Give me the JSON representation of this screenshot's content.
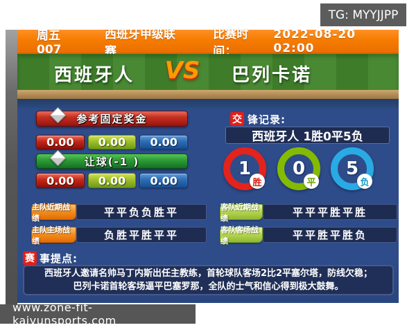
{
  "badges": {
    "tg": "TG: MYYJJPP",
    "watermark": "www.zone-fit-kaiyunsports.com"
  },
  "header": {
    "match_code": "周五007",
    "league": "西班牙甲级联赛",
    "time_label": "比赛时间：",
    "time_value": "2022-08-20 02:00"
  },
  "teams": {
    "home": "西班牙人",
    "vs": "VS",
    "away": "巴列卡诺"
  },
  "odds": {
    "fixed_title": "参考固定奖金",
    "fixed": [
      "0.00",
      "0.00",
      "0.00"
    ],
    "handicap_title": "让球(-1 )",
    "handicap": [
      "0.00",
      "0.00",
      "0.00"
    ]
  },
  "h2h": {
    "title_prefix": "交",
    "title_rest": "锋记录:",
    "summary": "西班牙人 1胜0平5负",
    "rings": [
      {
        "value": "1",
        "label": "胜",
        "color": "#e3231c"
      },
      {
        "value": "0",
        "label": "平",
        "color": "#84ba00"
      },
      {
        "value": "5",
        "label": "负",
        "color": "#2aaae4"
      }
    ]
  },
  "records": {
    "home": [
      {
        "label": "主队近期战绩",
        "value": "平平负负胜平"
      },
      {
        "label": "主队主场战绩",
        "value": "负胜平胜平平"
      }
    ],
    "away": [
      {
        "label": "客队近期战绩",
        "value": "平平平胜平胜"
      },
      {
        "label": "客队客场战绩",
        "value": "平平胜平胜负"
      }
    ]
  },
  "tips": {
    "title_prefix": "赛",
    "title_rest": "事提点:",
    "line1": "西班牙人邀请名帅马丁内斯出任主教练，首轮球队客场2比2平塞尔塔，防线欠稳；",
    "line2": "巴列卡诺首轮客场逼平巴塞罗那，全队的士气和信心得到极大鼓舞。"
  },
  "colors": {
    "accent_orange": "#f57c00",
    "panel_blue": "#2e4c8a",
    "pitch_green": "#3e7c2a",
    "dirt_brown": "#b28a55",
    "win_red": "#e3231c",
    "draw_green": "#84ba00",
    "loss_blue": "#2aaae4",
    "bar_navy": "#1e2c52",
    "tab_orange": "#f08c1e",
    "tab_green": "#b5d44e",
    "badge_gray": "#5c5c5c"
  }
}
